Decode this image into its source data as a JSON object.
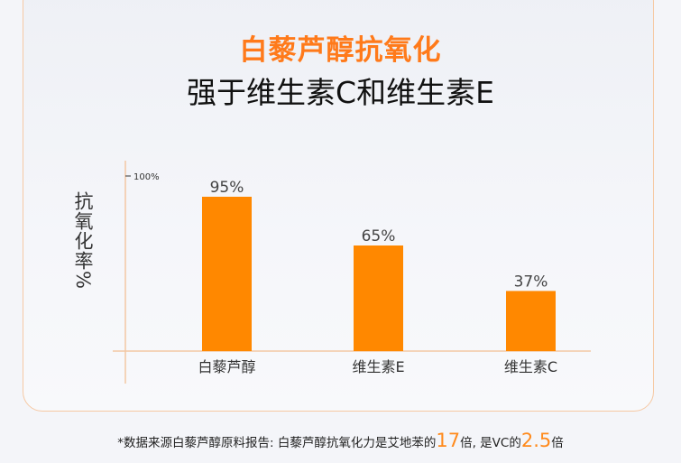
{
  "title_line1": "白藜芦醇抗氧化",
  "title_line2": "强于维生素C和维生素E",
  "chart_data": {
    "type": "bar",
    "categories": [
      "白藜芦醇",
      "维生素E",
      "维生素C"
    ],
    "values": [
      95,
      65,
      37
    ],
    "value_labels": [
      "95%",
      "65%",
      "37%"
    ],
    "ylabel": "抗氧化率%",
    "yticks": [
      "100%"
    ],
    "ylim": [
      0,
      100
    ],
    "grid": false,
    "bar_color": "#ff8800"
  },
  "footnote": {
    "prefix": "*数据来源白藜芦醇原料报告: 白藜芦醇抗氧化力是艾地苯的",
    "n1": "17",
    "mid": "倍, 是VC的",
    "n2": "2.5",
    "suffix": "倍"
  }
}
